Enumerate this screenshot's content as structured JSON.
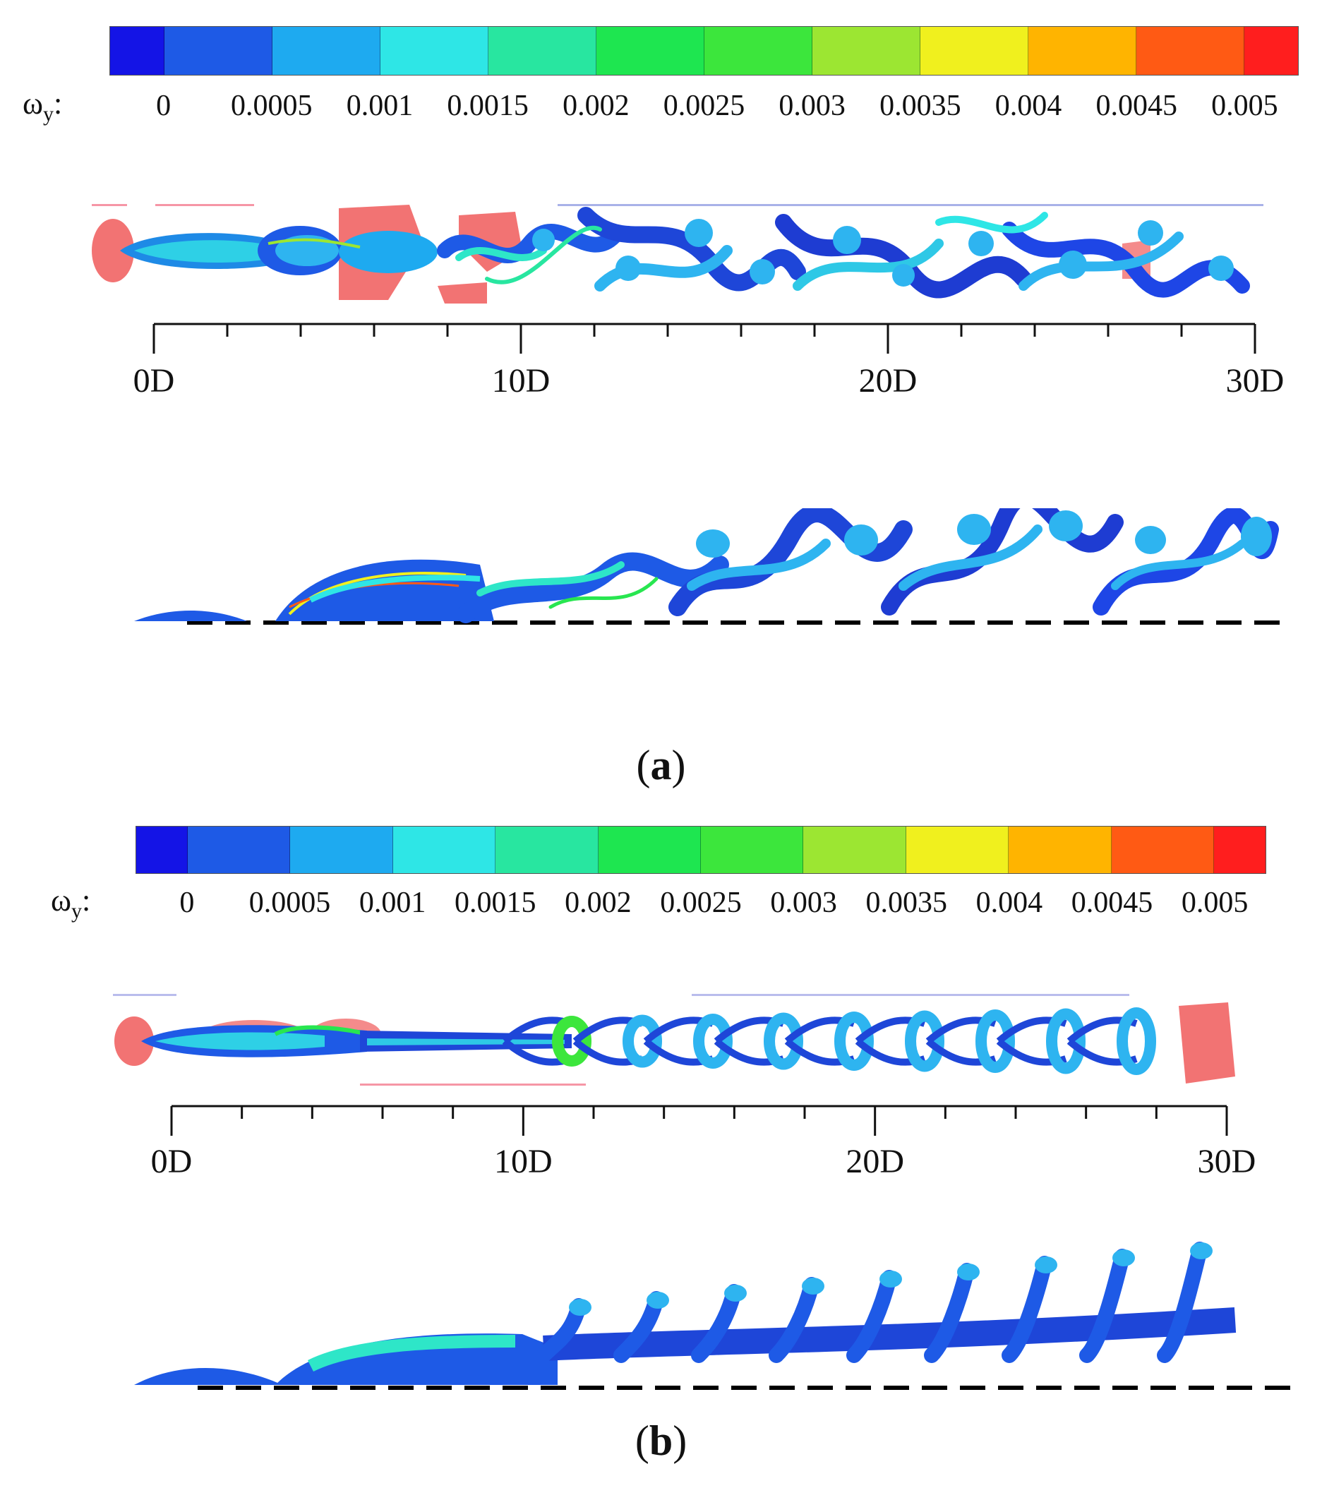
{
  "colorbar": {
    "label_main": "ω",
    "label_sub": "y",
    "label_suffix": ":",
    "colors": [
      "#1414e6",
      "#1e5ae6",
      "#1eaaf0",
      "#2ee6e6",
      "#28e6a0",
      "#1ee650",
      "#3ce63c",
      "#9ce632",
      "#f0f01e",
      "#ffb400",
      "#ff5a14",
      "#ff1e1e"
    ],
    "tick_labels": [
      "0",
      "0.0005",
      "0.001",
      "0.0015",
      "0.002",
      "0.0025",
      "0.003",
      "0.0035",
      "0.004",
      "0.0045",
      "0.005"
    ]
  },
  "panel_a": {
    "ruler_labels": [
      "0D",
      "10D",
      "20D",
      "30D"
    ],
    "caption_open": "(",
    "caption_letter": "a",
    "caption_close": ")"
  },
  "panel_b": {
    "ruler_labels": [
      "0D",
      "10D",
      "20D",
      "30D"
    ],
    "caption_open": "(",
    "caption_letter": "b",
    "caption_close": ")"
  }
}
